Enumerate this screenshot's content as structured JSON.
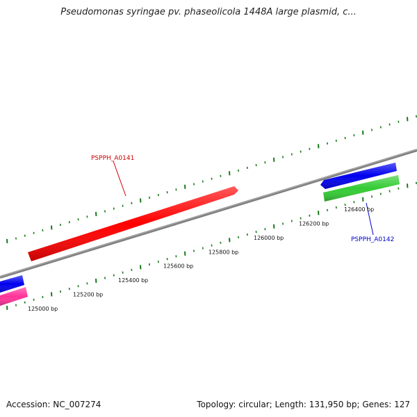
{
  "title": "Pseudomonas syringae pv. phaseolicola 1448A large plasmid, c...",
  "footer": {
    "accession": "Accession: NC_007274",
    "summary": "Topology: circular; Length: 131,950 bp; Genes: 127"
  },
  "ticks": [
    {
      "label": "125000 bp",
      "bp": 125000
    },
    {
      "label": "125200 bp",
      "bp": 125200
    },
    {
      "label": "125400 bp",
      "bp": 125400
    },
    {
      "label": "125600 bp",
      "bp": 125600
    },
    {
      "label": "125800 bp",
      "bp": 125800
    },
    {
      "label": "126000 bp",
      "bp": 126000
    },
    {
      "label": "126200 bp",
      "bp": 126200
    },
    {
      "label": "126400 bp",
      "bp": 126400
    }
  ],
  "genes": [
    {
      "label": "PSPPH_A0141",
      "color": "#ff0000",
      "label_color": "#cc0000"
    },
    {
      "label": "PSPPH_A0142",
      "color": "#0000ee",
      "label_color": "#0000cc"
    }
  ],
  "features": [
    {
      "name": "red-gene-bar",
      "color": "#ff0000"
    },
    {
      "name": "blue-gene-bar-right",
      "color": "#0000ee"
    },
    {
      "name": "green-cds-bar-right",
      "color": "#33cc33"
    },
    {
      "name": "blue-gene-bar-left",
      "color": "#0000ee"
    },
    {
      "name": "pink-cds-bar-left",
      "color": "#ff3399"
    }
  ],
  "colors": {
    "backbone": "#808080",
    "tick": "#1a7a1a"
  }
}
